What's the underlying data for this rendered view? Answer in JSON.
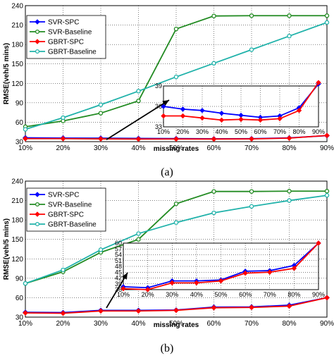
{
  "chart_data": [
    {
      "type": "line",
      "caption": "(a)",
      "xlabel": "missing rates",
      "ylabel": "RMSE(veh/5 mins)",
      "categories": [
        "10%",
        "20%",
        "30%",
        "40%",
        "50%",
        "60%",
        "70%",
        "80%",
        "90%"
      ],
      "ylim": [
        30,
        240
      ],
      "yticks": [
        30,
        60,
        90,
        120,
        150,
        180,
        210,
        240
      ],
      "grid": true,
      "legend": "top-left",
      "series": [
        {
          "name": "SVR-SPC",
          "color": "#0000ff",
          "marker": "diamond",
          "values": [
            36,
            35.6,
            35.4,
            35,
            34.7,
            34.4,
            34.6,
            35.8,
            39.3
          ]
        },
        {
          "name": "SVR-Baseline",
          "color": "#228b22",
          "marker": "circle",
          "values": [
            53,
            62,
            74,
            93,
            204,
            224,
            224.5,
            224.5,
            224.5
          ]
        },
        {
          "name": "GBRT-SPC",
          "color": "#ff0000",
          "marker": "diamond",
          "values": [
            34.6,
            34.6,
            34.3,
            34,
            34.1,
            34,
            34.2,
            35.4,
            39.5
          ]
        },
        {
          "name": "GBRT-Baseline",
          "color": "#20b2aa",
          "marker": "circle",
          "values": [
            49,
            67,
            87,
            108,
            130,
            151,
            172,
            193,
            214
          ]
        }
      ],
      "inset": {
        "categories": [
          "10%",
          "20%",
          "30%",
          "40%",
          "50%",
          "60%",
          "70%",
          "80%",
          "90%"
        ],
        "ylim": [
          33,
          39
        ],
        "yticks": [
          33,
          36,
          39
        ],
        "arrow_from": [
          "30%",
          31
        ],
        "arrow_to_inset": true
      }
    },
    {
      "type": "line",
      "caption": "(b)",
      "xlabel": "missing rates",
      "ylabel": "RMSE(veh/5 mins)",
      "categories": [
        "10%",
        "20%",
        "30%",
        "40%",
        "50%",
        "60%",
        "70%",
        "80%",
        "90%"
      ],
      "ylim": [
        30,
        240
      ],
      "yticks": [
        30,
        60,
        90,
        120,
        150,
        180,
        210,
        240
      ],
      "grid": true,
      "legend": "top-left",
      "series": [
        {
          "name": "SVR-SPC",
          "color": "#0000ff",
          "marker": "diamond",
          "values": [
            37.5,
            37,
            40.5,
            40.5,
            41,
            45.5,
            45.8,
            48.5,
            60
          ]
        },
        {
          "name": "SVR-Baseline",
          "color": "#228b22",
          "marker": "circle",
          "values": [
            82,
            100,
            130,
            150,
            205,
            224,
            224,
            224.5,
            224.5
          ]
        },
        {
          "name": "GBRT-SPC",
          "color": "#ff0000",
          "marker": "diamond",
          "values": [
            36.5,
            36,
            39.5,
            39.5,
            40.5,
            44.5,
            45,
            47,
            60
          ]
        },
        {
          "name": "GBRT-Baseline",
          "color": "#20b2aa",
          "marker": "circle",
          "values": [
            82,
            103,
            134,
            159,
            176,
            191,
            201,
            210,
            218
          ]
        }
      ],
      "inset": {
        "categories": [
          "10%",
          "20%",
          "30%",
          "40%",
          "50%",
          "60%",
          "70%",
          "80%",
          "90%"
        ],
        "ylim": [
          36,
          60
        ],
        "yticks": [
          36,
          39,
          42,
          45,
          48,
          51,
          54,
          57,
          60
        ],
        "arrow_from": [
          "30%",
          42
        ],
        "arrow_to_inset": true
      }
    }
  ]
}
